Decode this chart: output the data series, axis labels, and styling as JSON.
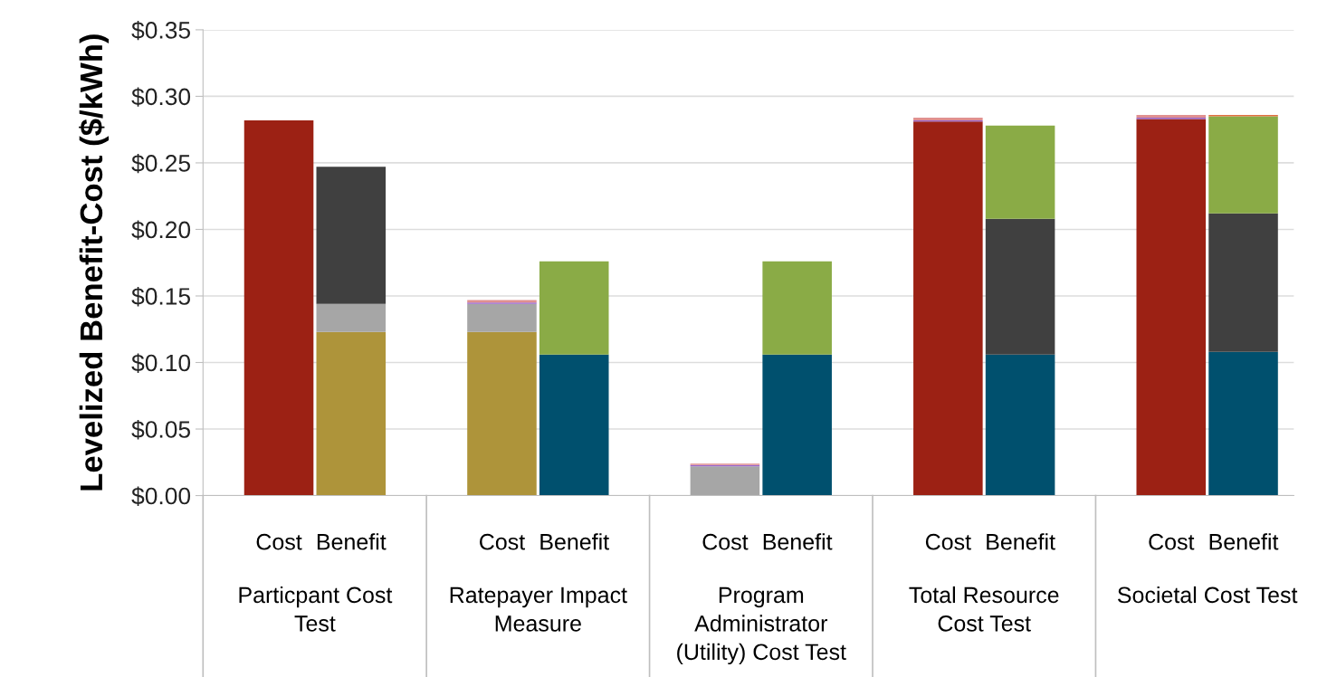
{
  "chart_data": {
    "type": "bar",
    "stacked": true,
    "ylabel": "Levelized Benefit-Cost ($/kWh)",
    "categories": [
      "Cost",
      "Benefit",
      "Cost",
      "Benefit",
      "Cost",
      "Benefit",
      "Cost",
      "Benefit",
      "Cost",
      "Benefit"
    ],
    "annotations": [
      "Particpant Cost\nTest",
      "Ratepayer Impact\nMeasure",
      "Program\nAdministrator\n(Utility) Cost Test",
      "Total Resource\nCost Test",
      "Societal Cost Test"
    ],
    "series": [
      {
        "color": "#9c2114",
        "values": [
          0.282,
          null,
          null,
          null,
          null,
          null,
          0.281,
          null,
          0.283,
          null
        ]
      },
      {
        "color": "#ae943a",
        "values": [
          null,
          0.123,
          0.123,
          null,
          null,
          null,
          null,
          null,
          null,
          null
        ]
      },
      {
        "color": "#00506e",
        "values": [
          null,
          null,
          null,
          0.106,
          null,
          0.106,
          null,
          0.106,
          null,
          0.108
        ]
      },
      {
        "color": "#a6a6a6",
        "values": [
          null,
          0.021,
          0.021,
          null,
          0.022,
          null,
          null,
          null,
          null,
          null
        ]
      },
      {
        "color": "#404040",
        "values": [
          null,
          0.103,
          null,
          null,
          null,
          null,
          null,
          0.102,
          null,
          0.104
        ]
      },
      {
        "color": "#8aab46",
        "values": [
          null,
          null,
          null,
          0.07,
          null,
          0.07,
          null,
          0.07,
          null,
          0.073
        ]
      },
      {
        "color": "#9966cc",
        "values": [
          null,
          null,
          0.001,
          null,
          0.001,
          null,
          0.001,
          null,
          0.001,
          null
        ]
      },
      {
        "color": "#e09090",
        "values": [
          null,
          null,
          0.002,
          null,
          0.001,
          null,
          0.002,
          null,
          0.002,
          null
        ]
      },
      {
        "color": "#e07040",
        "values": [
          null,
          null,
          null,
          null,
          null,
          null,
          null,
          null,
          null,
          0.001
        ]
      }
    ],
    "ylim": [
      0,
      0.35
    ],
    "yticks": [
      {
        "value": 0,
        "label": "$0.00"
      },
      {
        "value": 0.05,
        "label": "$0.05"
      },
      {
        "value": 0.1,
        "label": "$0.10"
      },
      {
        "value": 0.15,
        "label": "$0.15"
      },
      {
        "value": 0.2,
        "label": "$0.20"
      },
      {
        "value": 0.25,
        "label": "$0.25"
      },
      {
        "value": 0.3,
        "label": "$0.30"
      },
      {
        "value": 0.35,
        "label": "$0.35"
      }
    ],
    "grid": "y",
    "legend": false
  }
}
